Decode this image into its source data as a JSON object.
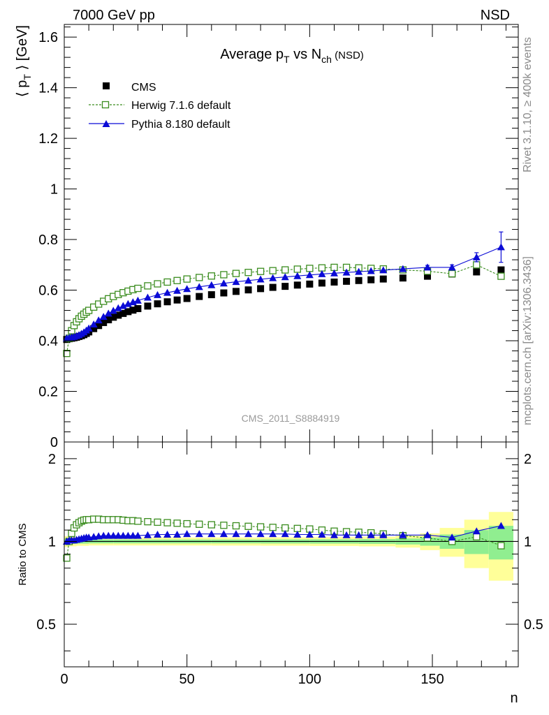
{
  "header": {
    "left": "7000 GeV pp",
    "right": "NSD"
  },
  "side_text": {
    "rivet": "Rivet 3.1.10, ≥ 400k events",
    "mcplots": "mcplots.cern.ch [arXiv:1306.3436]"
  },
  "chart_data": [
    {
      "type": "scatter",
      "title": {
        "text": "Average ",
        "p": "p",
        "p_sub": "T",
        "vs": " vs ",
        "n": "N",
        "n_sub": "ch",
        "tag": " (NSD)"
      },
      "ylabel": {
        "open": "⟨ ",
        "p": "p",
        "p_sub": "T",
        "close": " ⟩ [GeV]"
      },
      "analysis_label": "CMS_2011_S8884919",
      "xlim": [
        0,
        185
      ],
      "ylim": [
        0,
        1.65
      ],
      "yticks": [
        0,
        0.2,
        0.4,
        0.6,
        0.8,
        1,
        1.2,
        1.4,
        1.6
      ],
      "yticklabels": [
        "0",
        "0.2",
        "0.4",
        "0.6",
        "0.8",
        "1",
        "1.2",
        "1.4",
        "1.6"
      ],
      "legend_position": "top-left",
      "series": [
        {
          "name": "CMS",
          "marker": "square-filled",
          "color": "#000000",
          "x": [
            1,
            2,
            3,
            4,
            5,
            6,
            7,
            8,
            9,
            10,
            12,
            14,
            16,
            18,
            20,
            22,
            24,
            26,
            28,
            30,
            34,
            38,
            42,
            46,
            50,
            55,
            60,
            65,
            70,
            75,
            80,
            85,
            90,
            95,
            100,
            105,
            110,
            115,
            120,
            125,
            130,
            138,
            148,
            158,
            168,
            178
          ],
          "y": [
            0.405,
            0.408,
            0.41,
            0.412,
            0.414,
            0.417,
            0.42,
            0.424,
            0.429,
            0.435,
            0.448,
            0.46,
            0.472,
            0.483,
            0.493,
            0.501,
            0.508,
            0.515,
            0.521,
            0.527,
            0.537,
            0.546,
            0.554,
            0.561,
            0.567,
            0.575,
            0.582,
            0.589,
            0.595,
            0.601,
            0.606,
            0.611,
            0.615,
            0.62,
            0.624,
            0.628,
            0.632,
            0.635,
            0.638,
            0.641,
            0.644,
            0.648,
            0.655,
            0.664,
            0.672,
            0.68
          ]
        },
        {
          "name": "Herwig 7.1.6 default",
          "marker": "square-open",
          "line": "dashed",
          "color": "#3a8c1e",
          "x": [
            1,
            2,
            3,
            4,
            5,
            6,
            7,
            8,
            9,
            10,
            12,
            14,
            16,
            18,
            20,
            22,
            24,
            26,
            28,
            30,
            34,
            38,
            42,
            46,
            50,
            55,
            60,
            65,
            70,
            75,
            80,
            85,
            90,
            95,
            100,
            105,
            110,
            115,
            120,
            125,
            130,
            138,
            148,
            158,
            168,
            178
          ],
          "y": [
            0.35,
            0.41,
            0.44,
            0.46,
            0.475,
            0.487,
            0.497,
            0.505,
            0.513,
            0.52,
            0.533,
            0.545,
            0.556,
            0.566,
            0.575,
            0.583,
            0.59,
            0.596,
            0.602,
            0.607,
            0.617,
            0.625,
            0.632,
            0.638,
            0.644,
            0.65,
            0.656,
            0.661,
            0.666,
            0.67,
            0.674,
            0.677,
            0.68,
            0.683,
            0.686,
            0.688,
            0.69,
            0.69,
            0.688,
            0.686,
            0.684,
            0.68,
            0.675,
            0.665,
            0.7,
            0.655
          ]
        },
        {
          "name": "Pythia 8.180 default",
          "marker": "triangle-filled",
          "line": "solid",
          "color": "#0b0bd6",
          "x": [
            1,
            2,
            3,
            4,
            5,
            6,
            7,
            8,
            9,
            10,
            12,
            14,
            16,
            18,
            20,
            22,
            24,
            26,
            28,
            30,
            34,
            38,
            42,
            46,
            50,
            55,
            60,
            65,
            70,
            75,
            80,
            85,
            90,
            95,
            100,
            105,
            110,
            115,
            120,
            125,
            130,
            138,
            148,
            158,
            168,
            178
          ],
          "y": [
            0.41,
            0.412,
            0.414,
            0.416,
            0.419,
            0.423,
            0.428,
            0.434,
            0.441,
            0.449,
            0.465,
            0.481,
            0.495,
            0.508,
            0.519,
            0.529,
            0.538,
            0.546,
            0.553,
            0.559,
            0.571,
            0.581,
            0.59,
            0.598,
            0.605,
            0.613,
            0.62,
            0.627,
            0.633,
            0.638,
            0.643,
            0.648,
            0.652,
            0.656,
            0.66,
            0.664,
            0.667,
            0.67,
            0.673,
            0.676,
            0.679,
            0.684,
            0.69,
            0.69,
            0.73,
            0.77
          ],
          "yerr": [
            0.004,
            0.004,
            0.004,
            0.004,
            0.004,
            0.004,
            0.004,
            0.004,
            0.004,
            0.004,
            0.004,
            0.004,
            0.004,
            0.004,
            0.004,
            0.004,
            0.004,
            0.004,
            0.004,
            0.004,
            0.004,
            0.004,
            0.004,
            0.004,
            0.004,
            0.004,
            0.004,
            0.004,
            0.004,
            0.004,
            0.004,
            0.004,
            0.004,
            0.004,
            0.004,
            0.004,
            0.004,
            0.004,
            0.004,
            0.004,
            0.004,
            0.006,
            0.008,
            0.01,
            0.018,
            0.06
          ]
        }
      ]
    },
    {
      "type": "scatter",
      "ylabel": "Ratio to CMS",
      "xlabel": "n",
      "xlim": [
        0,
        185
      ],
      "ylim": [
        0.35,
        2.3
      ],
      "xticks": [
        0,
        50,
        100,
        150
      ],
      "xticklabels": [
        "0",
        "50",
        "100",
        "150"
      ],
      "yticks": [
        0.5,
        1,
        2
      ],
      "yticklabels": [
        "0.5",
        "1",
        "2"
      ],
      "reference_line": 1,
      "bands": {
        "x_edges": [
          0,
          2,
          5,
          10,
          20,
          40,
          60,
          80,
          100,
          120,
          135,
          145,
          153,
          163,
          173,
          183
        ],
        "green_halfwidth": [
          0.025,
          0.02,
          0.018,
          0.016,
          0.016,
          0.016,
          0.016,
          0.017,
          0.018,
          0.02,
          0.025,
          0.035,
          0.06,
          0.1,
          0.14
        ],
        "yellow_halfwidth": [
          0.045,
          0.04,
          0.036,
          0.033,
          0.033,
          0.033,
          0.034,
          0.035,
          0.037,
          0.04,
          0.05,
          0.07,
          0.12,
          0.2,
          0.28
        ],
        "green_color": "#90ee90",
        "yellow_color": "#ffff99"
      },
      "series": [
        {
          "name": "Herwig 7.1.6 default",
          "marker": "square-open",
          "line": "dashed",
          "color": "#3a8c1e",
          "x": [
            1,
            2,
            3,
            4,
            5,
            6,
            7,
            8,
            9,
            10,
            12,
            14,
            16,
            18,
            20,
            22,
            24,
            26,
            28,
            30,
            34,
            38,
            42,
            46,
            50,
            55,
            60,
            65,
            70,
            75,
            80,
            85,
            90,
            95,
            100,
            105,
            110,
            115,
            120,
            125,
            130,
            138,
            148,
            158,
            168,
            178
          ],
          "y": [
            0.87,
            1.0,
            1.07,
            1.12,
            1.15,
            1.17,
            1.185,
            1.195,
            1.2,
            1.2,
            1.205,
            1.205,
            1.2,
            1.2,
            1.2,
            1.2,
            1.195,
            1.19,
            1.19,
            1.185,
            1.18,
            1.175,
            1.17,
            1.165,
            1.16,
            1.155,
            1.15,
            1.145,
            1.14,
            1.135,
            1.13,
            1.125,
            1.12,
            1.115,
            1.11,
            1.1,
            1.09,
            1.085,
            1.08,
            1.075,
            1.065,
            1.05,
            1.03,
            1.0,
            1.04,
            0.965
          ]
        },
        {
          "name": "Pythia 8.180 default",
          "marker": "triangle-filled",
          "line": "solid",
          "color": "#0b0bd6",
          "x": [
            1,
            2,
            3,
            4,
            5,
            6,
            7,
            8,
            9,
            10,
            12,
            14,
            16,
            18,
            20,
            22,
            24,
            26,
            28,
            30,
            34,
            38,
            42,
            46,
            50,
            55,
            60,
            65,
            70,
            75,
            80,
            85,
            90,
            95,
            100,
            105,
            110,
            115,
            120,
            125,
            130,
            138,
            148,
            158,
            168,
            178
          ],
          "y": [
            1.0,
            1.01,
            1.01,
            1.01,
            1.015,
            1.02,
            1.025,
            1.03,
            1.035,
            1.035,
            1.04,
            1.045,
            1.05,
            1.05,
            1.05,
            1.05,
            1.05,
            1.05,
            1.05,
            1.05,
            1.055,
            1.06,
            1.06,
            1.06,
            1.065,
            1.065,
            1.065,
            1.065,
            1.065,
            1.065,
            1.065,
            1.065,
            1.065,
            1.06,
            1.06,
            1.06,
            1.055,
            1.055,
            1.055,
            1.055,
            1.055,
            1.055,
            1.055,
            1.035,
            1.09,
            1.14
          ]
        }
      ]
    }
  ]
}
